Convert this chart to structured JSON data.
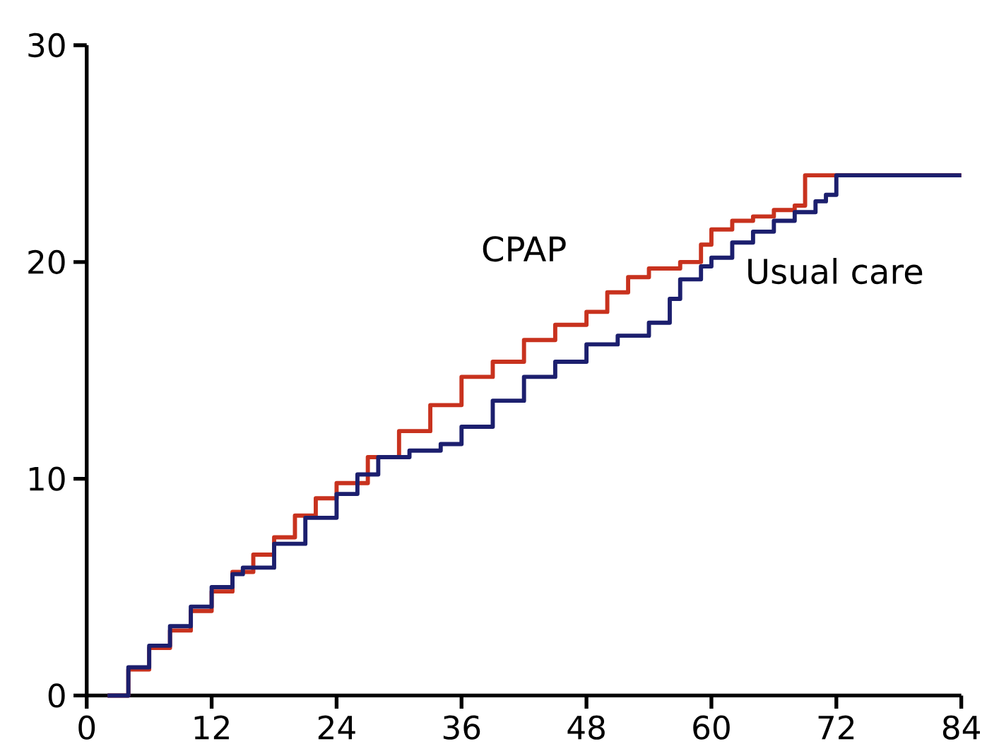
{
  "chart_data": {
    "type": "step",
    "xlim": [
      0,
      84
    ],
    "ylim": [
      0,
      30
    ],
    "xticks": [
      0,
      12,
      24,
      36,
      48,
      60,
      72,
      84
    ],
    "yticks": [
      0,
      10,
      20,
      30
    ],
    "grid": false,
    "marker": "none",
    "line_style": "solid",
    "series": [
      {
        "name": "CPAP",
        "color": "#c8321e",
        "x": [
          2,
          4,
          6,
          8,
          10,
          12,
          14,
          16,
          18,
          20,
          22,
          24,
          27,
          30,
          33,
          36,
          39,
          42,
          45,
          48,
          50,
          52,
          54,
          57,
          59,
          60,
          62,
          64,
          66,
          68,
          69,
          84
        ],
        "values": [
          0,
          1.2,
          2.2,
          3.0,
          3.9,
          4.8,
          5.7,
          6.5,
          7.3,
          8.3,
          9.1,
          9.8,
          11.0,
          12.2,
          13.4,
          14.7,
          15.4,
          16.4,
          17.1,
          17.7,
          18.6,
          19.3,
          19.7,
          20.0,
          20.8,
          21.5,
          21.9,
          22.1,
          22.4,
          22.6,
          24,
          24
        ]
      },
      {
        "name": "Usual care",
        "color": "#1c1f6e",
        "x": [
          2,
          4,
          6,
          8,
          10,
          12,
          14,
          15,
          18,
          21,
          24,
          26,
          28,
          31,
          34,
          36,
          39,
          42,
          45,
          48,
          51,
          54,
          56,
          57,
          59,
          60,
          62,
          64,
          66,
          68,
          70,
          71,
          72,
          84
        ],
        "values": [
          0,
          1.3,
          2.3,
          3.2,
          4.1,
          5.0,
          5.6,
          5.9,
          7.0,
          8.2,
          9.3,
          10.2,
          11.0,
          11.3,
          11.6,
          12.4,
          13.6,
          14.7,
          15.4,
          16.2,
          16.6,
          17.2,
          18.3,
          19.2,
          19.8,
          20.2,
          20.9,
          21.4,
          21.9,
          22.3,
          22.8,
          23.1,
          24,
          24
        ]
      }
    ]
  }
}
